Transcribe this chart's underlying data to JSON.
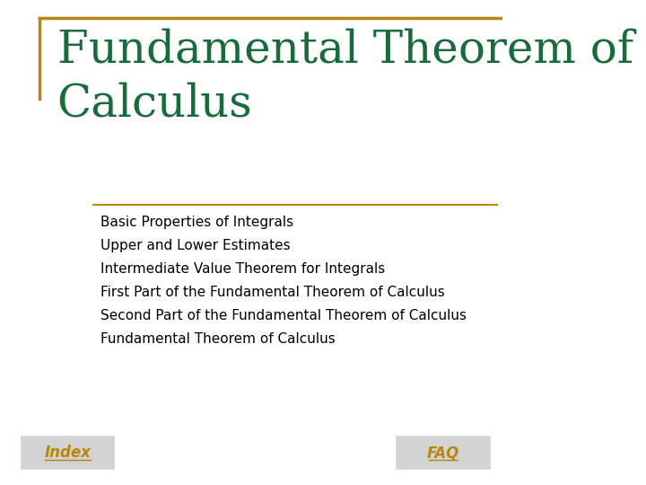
{
  "title_line1": "Fundamental Theorem of",
  "title_line2": "Calculus",
  "title_color": "#1a6b3c",
  "background_color": "#ffffff",
  "border_color_left": "#b8860b",
  "border_color_top": "#b8860b",
  "separator_color": "#b8860b",
  "bullet_items": [
    "Basic Properties of Integrals",
    "Upper and Lower Estimates",
    "Intermediate Value Theorem for Integrals",
    "First Part of the Fundamental Theorem of Calculus",
    "Second Part of the Fundamental Theorem of Calculus",
    "Fundamental Theorem of Calculus"
  ],
  "bullet_color": "#000000",
  "bullet_fontsize": 11,
  "title_fontsize": 36,
  "index_label": "Index",
  "faq_label": "FAQ",
  "nav_text_color": "#b8860b",
  "nav_box_color": "#d3d3d3"
}
